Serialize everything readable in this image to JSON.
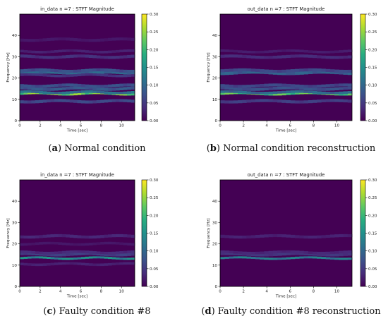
{
  "figure": {
    "panels": [
      {
        "id": "a",
        "caption_letter": "a",
        "caption_text": " Normal condition",
        "chart_data": {
          "type": "heatmap",
          "title": "in_data n =7 :  STFT Magnitude",
          "xlabel": "Time [sec]",
          "ylabel": "Frequency [Hz]",
          "xlim": [
            0,
            11.3
          ],
          "ylim": [
            0,
            50
          ],
          "xticks": [
            0,
            2,
            4,
            6,
            8,
            10
          ],
          "yticks": [
            0,
            10,
            20,
            30,
            40
          ],
          "colorbar": {
            "min": 0.0,
            "max": 0.3,
            "ticks": [
              "0.00",
              "0.05",
              "0.10",
              "0.15",
              "0.20",
              "0.25",
              "0.30"
            ],
            "colormap": "viridis"
          },
          "bands": [
            {
              "freq": 12.6,
              "intensity": 0.26,
              "width": 0.5
            },
            {
              "freq": 13.3,
              "intensity": 0.12,
              "width": 0.6
            },
            {
              "freq": 15.0,
              "intensity": 0.09,
              "width": 0.7
            },
            {
              "freq": 16.4,
              "intensity": 0.08,
              "width": 0.7
            },
            {
              "freq": 9.1,
              "intensity": 0.07,
              "width": 0.7
            },
            {
              "freq": 22.5,
              "intensity": 0.11,
              "width": 0.8
            },
            {
              "freq": 23.5,
              "intensity": 0.08,
              "width": 0.7
            },
            {
              "freq": 21.3,
              "intensity": 0.05,
              "width": 0.6
            },
            {
              "freq": 30.0,
              "intensity": 0.045,
              "width": 0.7
            },
            {
              "freq": 32.5,
              "intensity": 0.03,
              "width": 0.6
            },
            {
              "freq": 38.0,
              "intensity": 0.02,
              "width": 0.7
            }
          ]
        }
      },
      {
        "id": "b",
        "caption_letter": "b",
        "caption_text": " Normal condition reconstruction",
        "chart_data": {
          "type": "heatmap",
          "title": "out_data n =7 :  STFT Magnitude",
          "xlabel": "Time [sec]",
          "ylabel": "Frequency [Hz]",
          "xlim": [
            0,
            11.3
          ],
          "ylim": [
            0,
            50
          ],
          "xticks": [
            0,
            2,
            4,
            6,
            8,
            10
          ],
          "yticks": [
            0,
            10,
            20,
            30,
            40
          ],
          "colorbar": {
            "min": 0.0,
            "max": 0.3,
            "ticks": [
              "0.00",
              "0.05",
              "0.10",
              "0.15",
              "0.20",
              "0.25",
              "0.30"
            ],
            "colormap": "viridis"
          },
          "bands": [
            {
              "freq": 12.6,
              "intensity": 0.24,
              "width": 0.5
            },
            {
              "freq": 13.3,
              "intensity": 0.11,
              "width": 0.6
            },
            {
              "freq": 15.0,
              "intensity": 0.08,
              "width": 0.7
            },
            {
              "freq": 16.4,
              "intensity": 0.07,
              "width": 0.7
            },
            {
              "freq": 9.1,
              "intensity": 0.06,
              "width": 0.7
            },
            {
              "freq": 22.5,
              "intensity": 0.1,
              "width": 0.8
            },
            {
              "freq": 23.5,
              "intensity": 0.07,
              "width": 0.7
            },
            {
              "freq": 30.0,
              "intensity": 0.04,
              "width": 0.7
            },
            {
              "freq": 32.5,
              "intensity": 0.025,
              "width": 0.6
            }
          ]
        }
      },
      {
        "id": "c",
        "caption_letter": "c",
        "caption_text": " Faulty condition #8",
        "chart_data": {
          "type": "heatmap",
          "title": "in_data n =7 :  STFT Magnitude",
          "xlabel": "Time [sec]",
          "ylabel": "Frequency [Hz]",
          "xlim": [
            0,
            11.3
          ],
          "ylim": [
            0,
            50
          ],
          "xticks": [
            0,
            2,
            4,
            6,
            8,
            10
          ],
          "yticks": [
            0,
            10,
            20,
            30,
            40
          ],
          "colorbar": {
            "min": 0.0,
            "max": 0.3,
            "ticks": [
              "0.00",
              "0.05",
              "0.10",
              "0.15",
              "0.20",
              "0.25",
              "0.30"
            ],
            "colormap": "viridis"
          },
          "bands": [
            {
              "freq": 13.3,
              "intensity": 0.16,
              "width": 0.5
            },
            {
              "freq": 15.2,
              "intensity": 0.06,
              "width": 0.8
            },
            {
              "freq": 16.0,
              "intensity": 0.04,
              "width": 0.6
            },
            {
              "freq": 10.5,
              "intensity": 0.03,
              "width": 0.6
            },
            {
              "freq": 23.5,
              "intensity": 0.035,
              "width": 0.7
            },
            {
              "freq": 20.0,
              "intensity": 0.02,
              "width": 0.6
            }
          ]
        }
      },
      {
        "id": "d",
        "caption_letter": "d",
        "caption_text": " Faulty condition #8 reconstruction",
        "chart_data": {
          "type": "heatmap",
          "title": "out_data n =7 :  STFT Magnitude",
          "xlabel": "Time [sec]",
          "ylabel": "Frequency [Hz]",
          "xlim": [
            0,
            11.3
          ],
          "ylim": [
            0,
            50
          ],
          "xticks": [
            0,
            2,
            4,
            6,
            8,
            10
          ],
          "yticks": [
            0,
            10,
            20,
            30,
            40
          ],
          "colorbar": {
            "min": 0.0,
            "max": 0.3,
            "ticks": [
              "0.00",
              "0.05",
              "0.10",
              "0.15",
              "0.20",
              "0.25",
              "0.30"
            ],
            "colormap": "viridis"
          },
          "bands": [
            {
              "freq": 13.3,
              "intensity": 0.14,
              "width": 0.5
            },
            {
              "freq": 15.2,
              "intensity": 0.05,
              "width": 0.8
            },
            {
              "freq": 16.0,
              "intensity": 0.035,
              "width": 0.6
            },
            {
              "freq": 23.5,
              "intensity": 0.03,
              "width": 0.7
            }
          ]
        }
      }
    ]
  }
}
